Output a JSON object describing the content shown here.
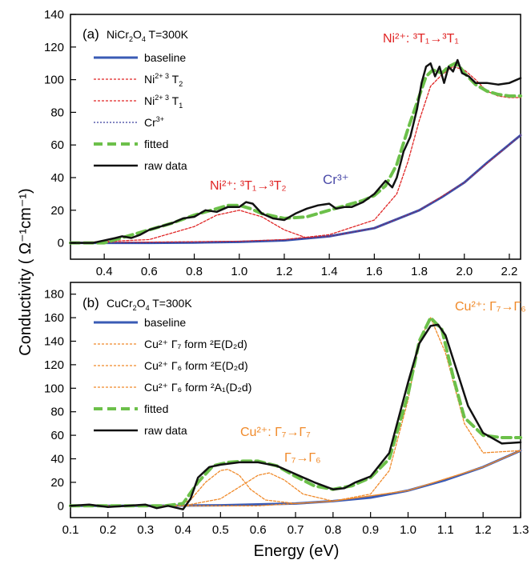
{
  "figure": {
    "y_label": "Conductivity ( Ω⁻¹cm⁻¹)",
    "x_label": "Energy (eV)"
  },
  "chart_data": [
    {
      "type": "line",
      "panel_label": "(a)",
      "title_main": "NiCr",
      "title_sub1": "2",
      "title_mid": "O",
      "title_sub2": "4",
      "title_tail": " T=300K",
      "xlabel": "",
      "ylabel": "Conductivity ( Ω⁻¹cm⁻¹)",
      "xlim": [
        0.25,
        2.25
      ],
      "ylim": [
        -10,
        140
      ],
      "x_ticks": [
        0.4,
        0.6,
        0.8,
        1.0,
        1.2,
        1.4,
        1.6,
        1.8,
        2.0,
        2.2
      ],
      "x_tick_labels": [
        "0.4",
        "0.6",
        "0.8",
        "1.0",
        "1.2",
        "1.4",
        "1.6",
        "1.8",
        "2.0",
        "2.2"
      ],
      "y_ticks": [
        0,
        20,
        40,
        60,
        80,
        100,
        120,
        140
      ],
      "y_tick_labels": [
        "0",
        "20",
        "40",
        "60",
        "80",
        "100",
        "120",
        "140"
      ],
      "colors": {
        "baseline": "#3a5bb5",
        "peak": "#e02525",
        "cr": "#3b3f9e",
        "fitted": "#6cc04a",
        "raw": "#111111"
      },
      "legend": [
        {
          "text": "baseline",
          "sup": "",
          "tail": "",
          "style": "baseline"
        },
        {
          "text": "Ni",
          "sup": "2+ 3",
          "tail": "T",
          "tsub": "2",
          "style": "peak"
        },
        {
          "text": "Ni",
          "sup": "2+ 3",
          "tail": "T",
          "tsub": "1",
          "style": "peak"
        },
        {
          "text": "Cr",
          "sup": "3+",
          "tail": "",
          "style": "cr"
        },
        {
          "text": "fitted",
          "sup": "",
          "tail": "",
          "style": "fitted"
        },
        {
          "text": "raw data",
          "sup": "",
          "tail": "",
          "style": "raw"
        }
      ],
      "annotations": [
        {
          "id": "ni-t1",
          "color": "#e02525",
          "text": "Ni²⁺: ³T₁→³T₁"
        },
        {
          "id": "ni-t2",
          "color": "#e02525",
          "text": "Ni²⁺: ³T₁→³T₂"
        },
        {
          "id": "cr",
          "color": "#4a4aa8",
          "text": "Cr³⁺"
        }
      ],
      "series": [
        {
          "name": "baseline",
          "x": [
            0.25,
            0.4,
            0.6,
            0.8,
            1.0,
            1.2,
            1.4,
            1.6,
            1.8,
            1.9,
            2.0,
            2.1,
            2.25
          ],
          "y": [
            0,
            0,
            0,
            0.2,
            0.6,
            1.5,
            4,
            9,
            20,
            28,
            37,
            49,
            66
          ]
        },
        {
          "name": "Ni2+ 3T2",
          "x": [
            0.25,
            0.6,
            0.8,
            0.9,
            1.0,
            1.1,
            1.2,
            1.3,
            1.4,
            1.6,
            1.8,
            2.0,
            2.25
          ],
          "y": [
            0,
            2,
            10,
            17,
            20,
            16,
            8,
            3,
            4,
            9,
            20,
            37,
            66
          ]
        },
        {
          "name": "Ni2+ 3T1",
          "x": [
            0.25,
            1.0,
            1.2,
            1.4,
            1.6,
            1.7,
            1.75,
            1.8,
            1.85,
            1.9,
            1.95,
            2.0,
            2.05,
            2.1,
            2.15,
            2.2,
            2.25
          ],
          "y": [
            0,
            1,
            2,
            5,
            14,
            30,
            50,
            75,
            96,
            103,
            108,
            106,
            100,
            93,
            90,
            89,
            89
          ]
        },
        {
          "name": "Cr3+",
          "x": [
            0.25,
            0.4,
            0.6,
            0.8,
            1.0,
            1.2,
            1.4,
            1.6,
            1.8,
            1.9,
            2.0,
            2.1,
            2.25
          ],
          "y": [
            0,
            0,
            0,
            0.2,
            0.6,
            1.5,
            4,
            9,
            20,
            28,
            37,
            49,
            66
          ]
        },
        {
          "name": "fitted",
          "x": [
            0.25,
            0.4,
            0.45,
            0.5,
            0.6,
            0.7,
            0.8,
            0.9,
            0.95,
            1.0,
            1.05,
            1.1,
            1.2,
            1.3,
            1.35,
            1.4,
            1.45,
            1.5,
            1.55,
            1.6,
            1.65,
            1.7,
            1.75,
            1.8,
            1.83,
            1.86,
            1.9,
            1.93,
            1.96,
            1.98,
            2.0,
            2.05,
            2.1,
            2.15,
            2.2,
            2.25
          ],
          "y": [
            0,
            0,
            2,
            4,
            8,
            12,
            17,
            21,
            23,
            23,
            21,
            18,
            15,
            16,
            18,
            20,
            22,
            24,
            26,
            29,
            35,
            48,
            70,
            90,
            102,
            106,
            104,
            108,
            110,
            108,
            104,
            97,
            93,
            91,
            90,
            90
          ]
        },
        {
          "name": "raw data",
          "x": [
            0.25,
            0.35,
            0.45,
            0.48,
            0.52,
            0.56,
            0.6,
            0.65,
            0.7,
            0.75,
            0.8,
            0.85,
            0.9,
            0.95,
            1.0,
            1.03,
            1.06,
            1.1,
            1.15,
            1.2,
            1.25,
            1.3,
            1.35,
            1.4,
            1.43,
            1.47,
            1.5,
            1.55,
            1.6,
            1.65,
            1.68,
            1.7,
            1.73,
            1.76,
            1.79,
            1.81,
            1.83,
            1.85,
            1.87,
            1.89,
            1.91,
            1.93,
            1.95,
            1.97,
            1.99,
            2.02,
            2.05,
            2.1,
            2.15,
            2.2,
            2.25
          ],
          "y": [
            0,
            0,
            3,
            4,
            3,
            5,
            8,
            10,
            12,
            15,
            16,
            20,
            19,
            22,
            22,
            25,
            24,
            18,
            15,
            14,
            18,
            21,
            23,
            24,
            21,
            22,
            22,
            25,
            30,
            38,
            34,
            40,
            56,
            65,
            82,
            98,
            108,
            110,
            102,
            108,
            98,
            108,
            105,
            112,
            104,
            102,
            98,
            98,
            97,
            98,
            101
          ]
        }
      ]
    },
    {
      "type": "line",
      "panel_label": "(b)",
      "title_main": "CuCr",
      "title_sub1": "2",
      "title_mid": "O",
      "title_sub2": "4",
      "title_tail": " T=300K",
      "xlabel": "Energy (eV)",
      "ylabel": "Conductivity ( Ω⁻¹cm⁻¹)",
      "xlim": [
        0.1,
        1.3
      ],
      "ylim": [
        -10,
        190
      ],
      "x_ticks": [
        0.1,
        0.2,
        0.3,
        0.4,
        0.5,
        0.6,
        0.7,
        0.8,
        0.9,
        1.0,
        1.1,
        1.2,
        1.3
      ],
      "x_tick_labels": [
        "0.1",
        "0.2",
        "0.3",
        "0.4",
        "0.5",
        "0.6",
        "0.7",
        "0.8",
        "0.9",
        "1.0",
        "1.1",
        "1.2",
        "1.3"
      ],
      "y_ticks": [
        0,
        20,
        40,
        60,
        80,
        100,
        120,
        140,
        160,
        180
      ],
      "y_tick_labels": [
        "0",
        "20",
        "40",
        "60",
        "80",
        "100",
        "120",
        "140",
        "160",
        "180"
      ],
      "colors": {
        "baseline": "#3a5bb5",
        "peak": "#f08a2a",
        "fitted": "#6cc04a",
        "raw": "#111111"
      },
      "legend": [
        {
          "text": "baseline",
          "style": "baseline"
        },
        {
          "text": "Cu²⁺ Γ₇ form ²E(D₂d)",
          "style": "peak"
        },
        {
          "text": "Cu²⁺ Γ₆ form ²E(D₂d)",
          "style": "peak"
        },
        {
          "text": "Cu²⁺ Γ₆ form ²A₁(D₂d)",
          "style": "peak"
        },
        {
          "text": "fitted",
          "style": "fitted"
        },
        {
          "text": "raw data",
          "style": "raw"
        }
      ],
      "annotations": [
        {
          "id": "cu-g7g6",
          "color": "#f08a2a",
          "text": "Cu²⁺: Γ₇→Γ₆"
        },
        {
          "id": "cu-g7g7",
          "color": "#f08a2a",
          "text": "Cu²⁺: Γ₇→Γ₇"
        },
        {
          "id": "g7g6",
          "color": "#f08a2a",
          "text": "Γ₇→Γ₆"
        }
      ],
      "series": [
        {
          "name": "baseline",
          "x": [
            0.1,
            0.3,
            0.5,
            0.7,
            0.8,
            0.9,
            1.0,
            1.1,
            1.2,
            1.3
          ],
          "y": [
            0,
            0,
            0.5,
            2,
            4,
            7,
            13,
            22,
            33,
            47
          ]
        },
        {
          "name": "Cu2+ Γ7 form 2E(D2d)",
          "x": [
            0.1,
            0.38,
            0.42,
            0.46,
            0.5,
            0.52,
            0.55,
            0.58,
            0.62,
            0.7,
            0.8,
            1.0,
            1.2,
            1.3
          ],
          "y": [
            0,
            0,
            5,
            20,
            30,
            31,
            26,
            14,
            5,
            2,
            4,
            13,
            33,
            47
          ]
        },
        {
          "name": "Cu2+ Γ6 form 2E(D2d)",
          "x": [
            0.1,
            0.4,
            0.5,
            0.55,
            0.6,
            0.63,
            0.67,
            0.72,
            0.8,
            1.0,
            1.2,
            1.3
          ],
          "y": [
            0,
            0,
            6,
            16,
            26,
            28,
            22,
            10,
            4,
            13,
            33,
            47
          ]
        },
        {
          "name": "Cu2+ Γ6 form 2A1(D2d)",
          "x": [
            0.1,
            0.6,
            0.8,
            0.9,
            0.95,
            1.0,
            1.03,
            1.06,
            1.1,
            1.15,
            1.2,
            1.3
          ],
          "y": [
            0,
            0,
            4,
            10,
            30,
            90,
            140,
            160,
            130,
            70,
            45,
            47
          ]
        },
        {
          "name": "fitted",
          "x": [
            0.1,
            0.35,
            0.4,
            0.44,
            0.48,
            0.52,
            0.56,
            0.6,
            0.65,
            0.7,
            0.75,
            0.8,
            0.85,
            0.9,
            0.95,
            1.0,
            1.03,
            1.06,
            1.09,
            1.12,
            1.15,
            1.2,
            1.25,
            1.3
          ],
          "y": [
            0,
            0,
            2,
            20,
            34,
            37,
            38,
            38,
            34,
            25,
            17,
            14,
            17,
            24,
            40,
            95,
            140,
            160,
            150,
            110,
            75,
            60,
            58,
            58
          ]
        },
        {
          "name": "raw data",
          "x": [
            0.1,
            0.15,
            0.2,
            0.25,
            0.3,
            0.33,
            0.36,
            0.4,
            0.42,
            0.44,
            0.47,
            0.5,
            0.55,
            0.6,
            0.65,
            0.7,
            0.75,
            0.8,
            0.83,
            0.86,
            0.9,
            0.95,
            1.0,
            1.03,
            1.06,
            1.08,
            1.1,
            1.13,
            1.16,
            1.2,
            1.25,
            1.3
          ],
          "y": [
            0,
            1,
            -1,
            0,
            1,
            -2,
            0,
            -3,
            6,
            24,
            33,
            35,
            37,
            37,
            34,
            27,
            20,
            14,
            15,
            20,
            25,
            45,
            105,
            138,
            153,
            154,
            145,
            115,
            85,
            62,
            53,
            54
          ]
        }
      ]
    }
  ]
}
